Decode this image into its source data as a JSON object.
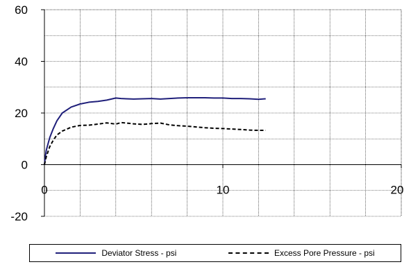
{
  "chart_data": {
    "type": "line",
    "title": "",
    "xlabel": "",
    "ylabel": "",
    "xlim": [
      0,
      20
    ],
    "ylim": [
      -20,
      60
    ],
    "x_ticks": [
      0,
      10,
      20
    ],
    "y_ticks": [
      -20,
      0,
      20,
      40,
      60
    ],
    "x_tick_labels": [
      "0",
      "10",
      "20"
    ],
    "y_tick_labels": [
      "-20",
      "0",
      "20",
      "40",
      "60"
    ],
    "grid": true,
    "legend_position": "bottom",
    "series": [
      {
        "name": "Deviator Stress - psi",
        "color": "#1f1f7a",
        "style": "solid",
        "x": [
          0,
          0.05,
          0.1,
          0.2,
          0.3,
          0.5,
          0.7,
          1.0,
          1.5,
          2.0,
          2.5,
          3.0,
          3.5,
          4.0,
          4.3,
          4.6,
          5.0,
          5.5,
          6.0,
          6.5,
          7.0,
          7.5,
          8.0,
          8.5,
          9.0,
          9.5,
          10.0,
          10.5,
          11.0,
          11.5,
          12.0,
          12.4
        ],
        "y": [
          0,
          3,
          5.5,
          8,
          10.5,
          14,
          17,
          20,
          22.3,
          23.5,
          24.2,
          24.5,
          25,
          25.8,
          25.6,
          25.5,
          25.4,
          25.5,
          25.6,
          25.4,
          25.6,
          25.8,
          25.9,
          25.9,
          25.9,
          25.8,
          25.8,
          25.6,
          25.6,
          25.5,
          25.3,
          25.5
        ]
      },
      {
        "name": "Excess Pore Pressure - psi",
        "color": "#000000",
        "style": "dashed",
        "x": [
          0,
          0.05,
          0.1,
          0.2,
          0.3,
          0.5,
          0.7,
          1.0,
          1.5,
          2.0,
          2.5,
          3.0,
          3.5,
          4.0,
          4.3,
          4.6,
          5.0,
          5.5,
          6.0,
          6.5,
          7.0,
          7.5,
          8.0,
          8.5,
          9.0,
          9.5,
          10.0,
          10.5,
          11.0,
          11.5,
          12.0,
          12.4
        ],
        "y": [
          0,
          1.5,
          3,
          5,
          7,
          9.5,
          11.5,
          13,
          14.5,
          15.2,
          15.3,
          15.7,
          16.2,
          15.7,
          16.3,
          16.1,
          15.8,
          15.6,
          15.9,
          16.1,
          15.4,
          15.1,
          14.9,
          14.6,
          14.3,
          14.1,
          14.0,
          13.8,
          13.6,
          13.4,
          13.3,
          13.3
        ]
      }
    ]
  }
}
